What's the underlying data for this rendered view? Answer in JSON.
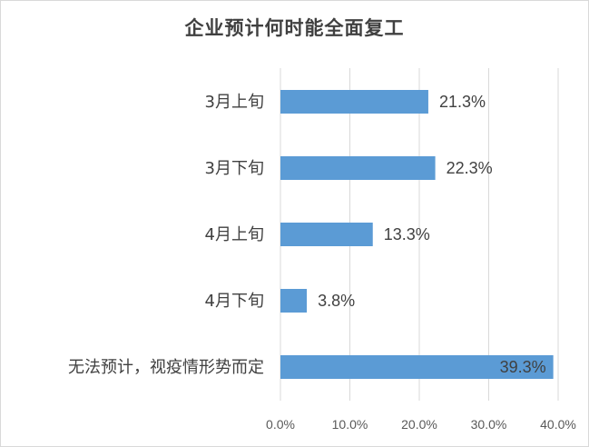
{
  "chart_data": {
    "type": "bar",
    "orientation": "horizontal",
    "title": "企业预计何时能全面复工",
    "categories": [
      "3月上旬",
      "3月下旬",
      "4月上旬",
      "4月下旬",
      "无法预计，视疫情形势而定"
    ],
    "values": [
      21.3,
      22.3,
      13.3,
      3.8,
      39.3
    ],
    "data_labels": [
      "21.3%",
      "22.3%",
      "13.3%",
      "3.8%",
      "39.3%"
    ],
    "xlim": [
      0,
      40
    ],
    "x_ticks": [
      0,
      10,
      20,
      30,
      40
    ],
    "x_tick_labels": [
      "0.0%",
      "10.0%",
      "20.0%",
      "30.0%",
      "40.0%"
    ],
    "xlabel": "",
    "ylabel": "",
    "grid": "vertical",
    "legend": "none",
    "bar_color": "#5b9bd5",
    "grid_color": "#d9d9d9",
    "text_color": "#404040"
  }
}
